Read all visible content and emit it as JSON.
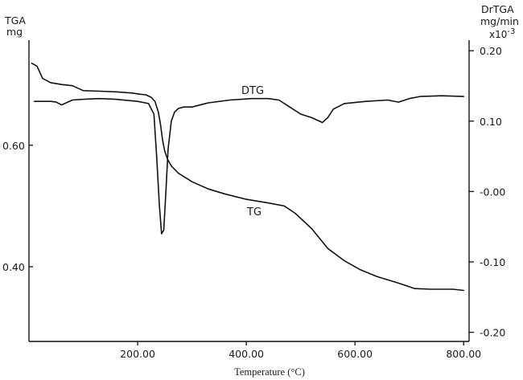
{
  "chart_data": {
    "type": "line",
    "xlabel": "Temperature (°C)",
    "x_ticks": [
      "200.00",
      "400.00",
      "600.00",
      "800.00"
    ],
    "xlim": [
      0,
      810
    ],
    "left_axis": {
      "label_line1": "TGA",
      "label_line2": "mg",
      "ticks": [
        "0.60",
        "0.40"
      ],
      "ylim": [
        0.277,
        0.773
      ]
    },
    "right_axis": {
      "label_line1": "DrTGA",
      "label_line2": "mg/min",
      "label_line3": "x10",
      "label_exp": "-3",
      "ticks": [
        "0.20",
        "0.10",
        "-0.00",
        "-0.10",
        "-0.20"
      ],
      "ylim": [
        -0.213,
        0.215
      ]
    },
    "series": [
      {
        "name": "TG",
        "axis": "left",
        "x": [
          5,
          15,
          25,
          40,
          60,
          80,
          100,
          130,
          160,
          190,
          205,
          215,
          225,
          232,
          238,
          242,
          246,
          250,
          255,
          262,
          275,
          300,
          330,
          360,
          400,
          440,
          470,
          490,
          520,
          550,
          580,
          610,
          640,
          680,
          710,
          740,
          780,
          800
        ],
        "y": [
          0.735,
          0.73,
          0.71,
          0.703,
          0.7,
          0.698,
          0.69,
          0.689,
          0.688,
          0.686,
          0.684,
          0.683,
          0.679,
          0.672,
          0.655,
          0.635,
          0.608,
          0.59,
          0.577,
          0.566,
          0.554,
          0.54,
          0.528,
          0.52,
          0.511,
          0.505,
          0.5,
          0.488,
          0.463,
          0.43,
          0.41,
          0.395,
          0.384,
          0.373,
          0.364,
          0.363,
          0.363,
          0.361
        ]
      },
      {
        "name": "DTG",
        "axis": "right",
        "x": [
          10,
          20,
          30,
          40,
          50,
          60,
          80,
          100,
          130,
          160,
          200,
          220,
          230,
          235,
          240,
          244,
          248,
          252,
          256,
          262,
          268,
          275,
          285,
          300,
          330,
          370,
          410,
          440,
          460,
          480,
          500,
          520,
          540,
          550,
          560,
          580,
          620,
          660,
          680,
          700,
          720,
          760,
          800
        ],
        "y": [
          0.128,
          0.128,
          0.128,
          0.128,
          0.127,
          0.123,
          0.13,
          0.131,
          0.132,
          0.131,
          0.128,
          0.125,
          0.11,
          0.05,
          -0.02,
          -0.06,
          -0.055,
          0.0,
          0.06,
          0.1,
          0.113,
          0.118,
          0.12,
          0.12,
          0.126,
          0.13,
          0.132,
          0.132,
          0.13,
          0.12,
          0.11,
          0.105,
          0.098,
          0.105,
          0.117,
          0.125,
          0.128,
          0.13,
          0.127,
          0.132,
          0.135,
          0.136,
          0.135
        ]
      }
    ],
    "annotations": [
      "DTG",
      "TG"
    ]
  }
}
